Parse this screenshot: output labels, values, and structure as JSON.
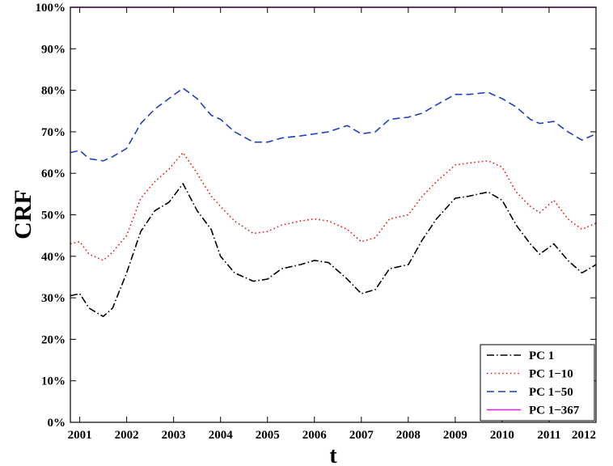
{
  "chart_data": {
    "type": "line",
    "title": "",
    "xlabel": "t",
    "ylabel": "CRF",
    "xlim": [
      2000.8,
      2012.0
    ],
    "ylim": [
      0,
      100
    ],
    "xticks": [
      2001,
      2002,
      2003,
      2004,
      2005,
      2006,
      2007,
      2008,
      2009,
      2010,
      2011,
      2012
    ],
    "xtick_labels": [
      "2001",
      "2002",
      "2003",
      "2004",
      "2005",
      "2006",
      "2007",
      "2008",
      "2009",
      "2010",
      "2011",
      "2012"
    ],
    "yticks": [
      0,
      10,
      20,
      30,
      40,
      50,
      60,
      70,
      80,
      90,
      100
    ],
    "ytick_labels": [
      "0%",
      "10%",
      "20%",
      "30%",
      "40%",
      "50%",
      "60%",
      "70%",
      "80%",
      "90%",
      "100%"
    ],
    "grid": false,
    "legend_position": "bottom-right",
    "x": [
      2000.8,
      2001.0,
      2001.2,
      2001.5,
      2001.7,
      2002.0,
      2002.3,
      2002.6,
      2002.9,
      2003.2,
      2003.5,
      2003.8,
      2004.0,
      2004.3,
      2004.7,
      2005.0,
      2005.3,
      2005.7,
      2006.0,
      2006.3,
      2006.7,
      2007.0,
      2007.3,
      2007.6,
      2008.0,
      2008.3,
      2008.6,
      2009.0,
      2009.3,
      2009.7,
      2010.0,
      2010.3,
      2010.6,
      2010.8,
      2011.1,
      2011.4,
      2011.7,
      2012.0
    ],
    "series": [
      {
        "name": "PC 1",
        "color": "#000000",
        "dash": "dashdot",
        "values": [
          30.5,
          31,
          27.5,
          25.5,
          27.5,
          36,
          46,
          51,
          53,
          57.5,
          51,
          46.5,
          40,
          36,
          34,
          34.5,
          37,
          38,
          39,
          38.5,
          34.5,
          31,
          32,
          37,
          38,
          44,
          49,
          54,
          54.5,
          55.5,
          53.5,
          47.5,
          43,
          40.5,
          43,
          39,
          36,
          38
        ]
      },
      {
        "name": "PC 1−10",
        "color": "#e8191c",
        "dash": "dotted",
        "values": [
          43,
          43.5,
          40.5,
          39,
          41,
          45,
          54,
          58,
          61,
          65,
          60,
          54.5,
          52,
          48.5,
          45.5,
          46,
          47.5,
          48.5,
          49,
          48.5,
          46.5,
          43.5,
          44.5,
          49,
          50,
          54.5,
          58,
          62,
          62.5,
          63,
          61.5,
          55.5,
          52,
          50.5,
          53.5,
          49,
          46.5,
          48
        ]
      },
      {
        "name": "PC 1−50",
        "color": "#1f3fc1",
        "dash": "dashed",
        "values": [
          65,
          65.5,
          63.5,
          63,
          64,
          66,
          72,
          75.5,
          78,
          80.5,
          78,
          74,
          73,
          70,
          67.5,
          67.5,
          68.5,
          69,
          69.5,
          70,
          71.5,
          69.5,
          70,
          73,
          73.5,
          74.5,
          76.5,
          79,
          79,
          79.5,
          78,
          76,
          73,
          72,
          72.5,
          70,
          68,
          69.5
        ]
      },
      {
        "name": "PC 1−367",
        "color": "#e020e0",
        "dash": "solid",
        "values": [
          100,
          100,
          100,
          100,
          100,
          100,
          100,
          100,
          100,
          100,
          100,
          100,
          100,
          100,
          100,
          100,
          100,
          100,
          100,
          100,
          100,
          100,
          100,
          100,
          100,
          100,
          100,
          100,
          100,
          100,
          100,
          100,
          100,
          100,
          100,
          100,
          100,
          100
        ]
      }
    ]
  }
}
